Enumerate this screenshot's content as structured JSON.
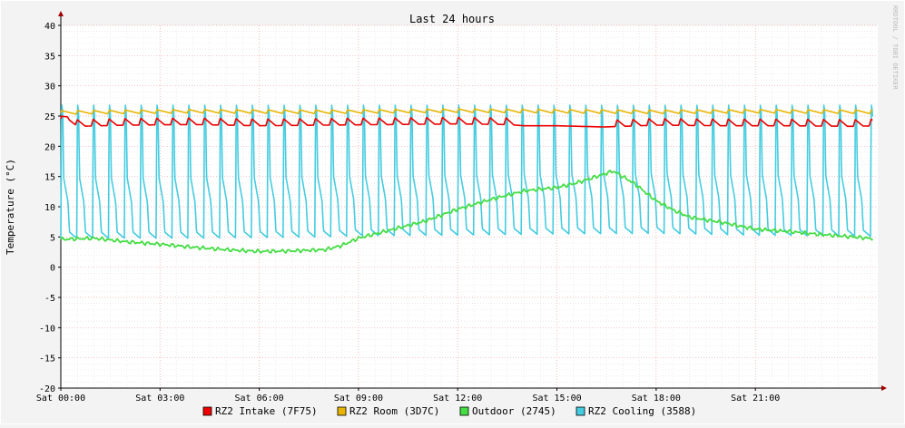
{
  "chart_data": {
    "type": "line",
    "title": "Last 24 hours",
    "ylabel": "Temperature (°C)",
    "watermark": "RRDTOOL / TOBI OETIKER",
    "ylim": [
      -20,
      40
    ],
    "y_ticks": [
      -20,
      -15,
      -10,
      -5,
      0,
      5,
      10,
      15,
      20,
      25,
      30,
      35,
      40
    ],
    "xlim_hours": [
      0,
      24.7
    ],
    "x_ticks": [
      {
        "hour": 0,
        "label": "Sat 00:00"
      },
      {
        "hour": 3,
        "label": "Sat 03:00"
      },
      {
        "hour": 6,
        "label": "Sat 06:00"
      },
      {
        "hour": 9,
        "label": "Sat 09:00"
      },
      {
        "hour": 12,
        "label": "Sat 12:00"
      },
      {
        "hour": 15,
        "label": "Sat 15:00"
      },
      {
        "hour": 18,
        "label": "Sat 18:00"
      },
      {
        "hour": 21,
        "label": "Sat 21:00"
      }
    ],
    "series": [
      {
        "name": "RZ2 Intake (7F75)",
        "color": "#ee0000",
        "points": [
          [
            0,
            23.8
          ],
          [
            0.2,
            24.6
          ],
          [
            0.5,
            23.3
          ],
          [
            2,
            23.5
          ],
          [
            4,
            23.6
          ],
          [
            6,
            23.4
          ],
          [
            8,
            23.5
          ],
          [
            10,
            23.6
          ],
          [
            12,
            23.7
          ],
          [
            13.5,
            23.6
          ],
          [
            14,
            23.4
          ],
          [
            15,
            23.4
          ],
          [
            16.4,
            23.2
          ],
          [
            17,
            23.3
          ],
          [
            18,
            23.5
          ],
          [
            20,
            23.4
          ],
          [
            22,
            23.4
          ],
          [
            24,
            23.3
          ],
          [
            24.6,
            23.4
          ]
        ],
        "cycle_hours": 0.48,
        "cycle_peak": 1.1
      },
      {
        "name": "RZ2 Room (3D7C)",
        "color": "#e8b400",
        "points": [
          [
            0,
            25.5
          ],
          [
            4,
            25.7
          ],
          [
            8,
            25.6
          ],
          [
            12,
            25.8
          ],
          [
            15,
            25.7
          ],
          [
            18,
            25.6
          ],
          [
            21,
            25.7
          ],
          [
            24.6,
            25.6
          ]
        ],
        "cycle_hours": 0.48,
        "cycle_peak": 0.6
      },
      {
        "name": "Outdoor (2745)",
        "color": "#44dd44",
        "points": [
          [
            0,
            4.6
          ],
          [
            1,
            4.8
          ],
          [
            2,
            4.2
          ],
          [
            3,
            3.8
          ],
          [
            4,
            3.3
          ],
          [
            5,
            2.9
          ],
          [
            6,
            2.6
          ],
          [
            7,
            2.7
          ],
          [
            8,
            2.9
          ],
          [
            8.5,
            3.6
          ],
          [
            9,
            4.8
          ],
          [
            10,
            6.2
          ],
          [
            11,
            7.6
          ],
          [
            12,
            9.6
          ],
          [
            13,
            11.2
          ],
          [
            14,
            12.6
          ],
          [
            15,
            13.2
          ],
          [
            15.5,
            13.8
          ],
          [
            16.2,
            15.0
          ],
          [
            16.7,
            15.9
          ],
          [
            17.3,
            14.0
          ],
          [
            18,
            11.0
          ],
          [
            18.5,
            9.5
          ],
          [
            19,
            8.3
          ],
          [
            20,
            7.4
          ],
          [
            21,
            6.3
          ],
          [
            22,
            5.9
          ],
          [
            23,
            5.4
          ],
          [
            24,
            5.0
          ],
          [
            24.6,
            4.7
          ]
        ]
      },
      {
        "name": "RZ2 Cooling (3588)",
        "color": "#44cce0",
        "baseline": [
          [
            0,
            4.8
          ],
          [
            4,
            4.8
          ],
          [
            8,
            5.0
          ],
          [
            9,
            5.2
          ],
          [
            12,
            5.3
          ],
          [
            15,
            5.5
          ],
          [
            18,
            5.6
          ],
          [
            21,
            5.3
          ],
          [
            24.6,
            5.1
          ]
        ],
        "peak": 27.0,
        "cycle_hours": 0.48
      }
    ],
    "legend": {
      "position": "bottom"
    }
  }
}
